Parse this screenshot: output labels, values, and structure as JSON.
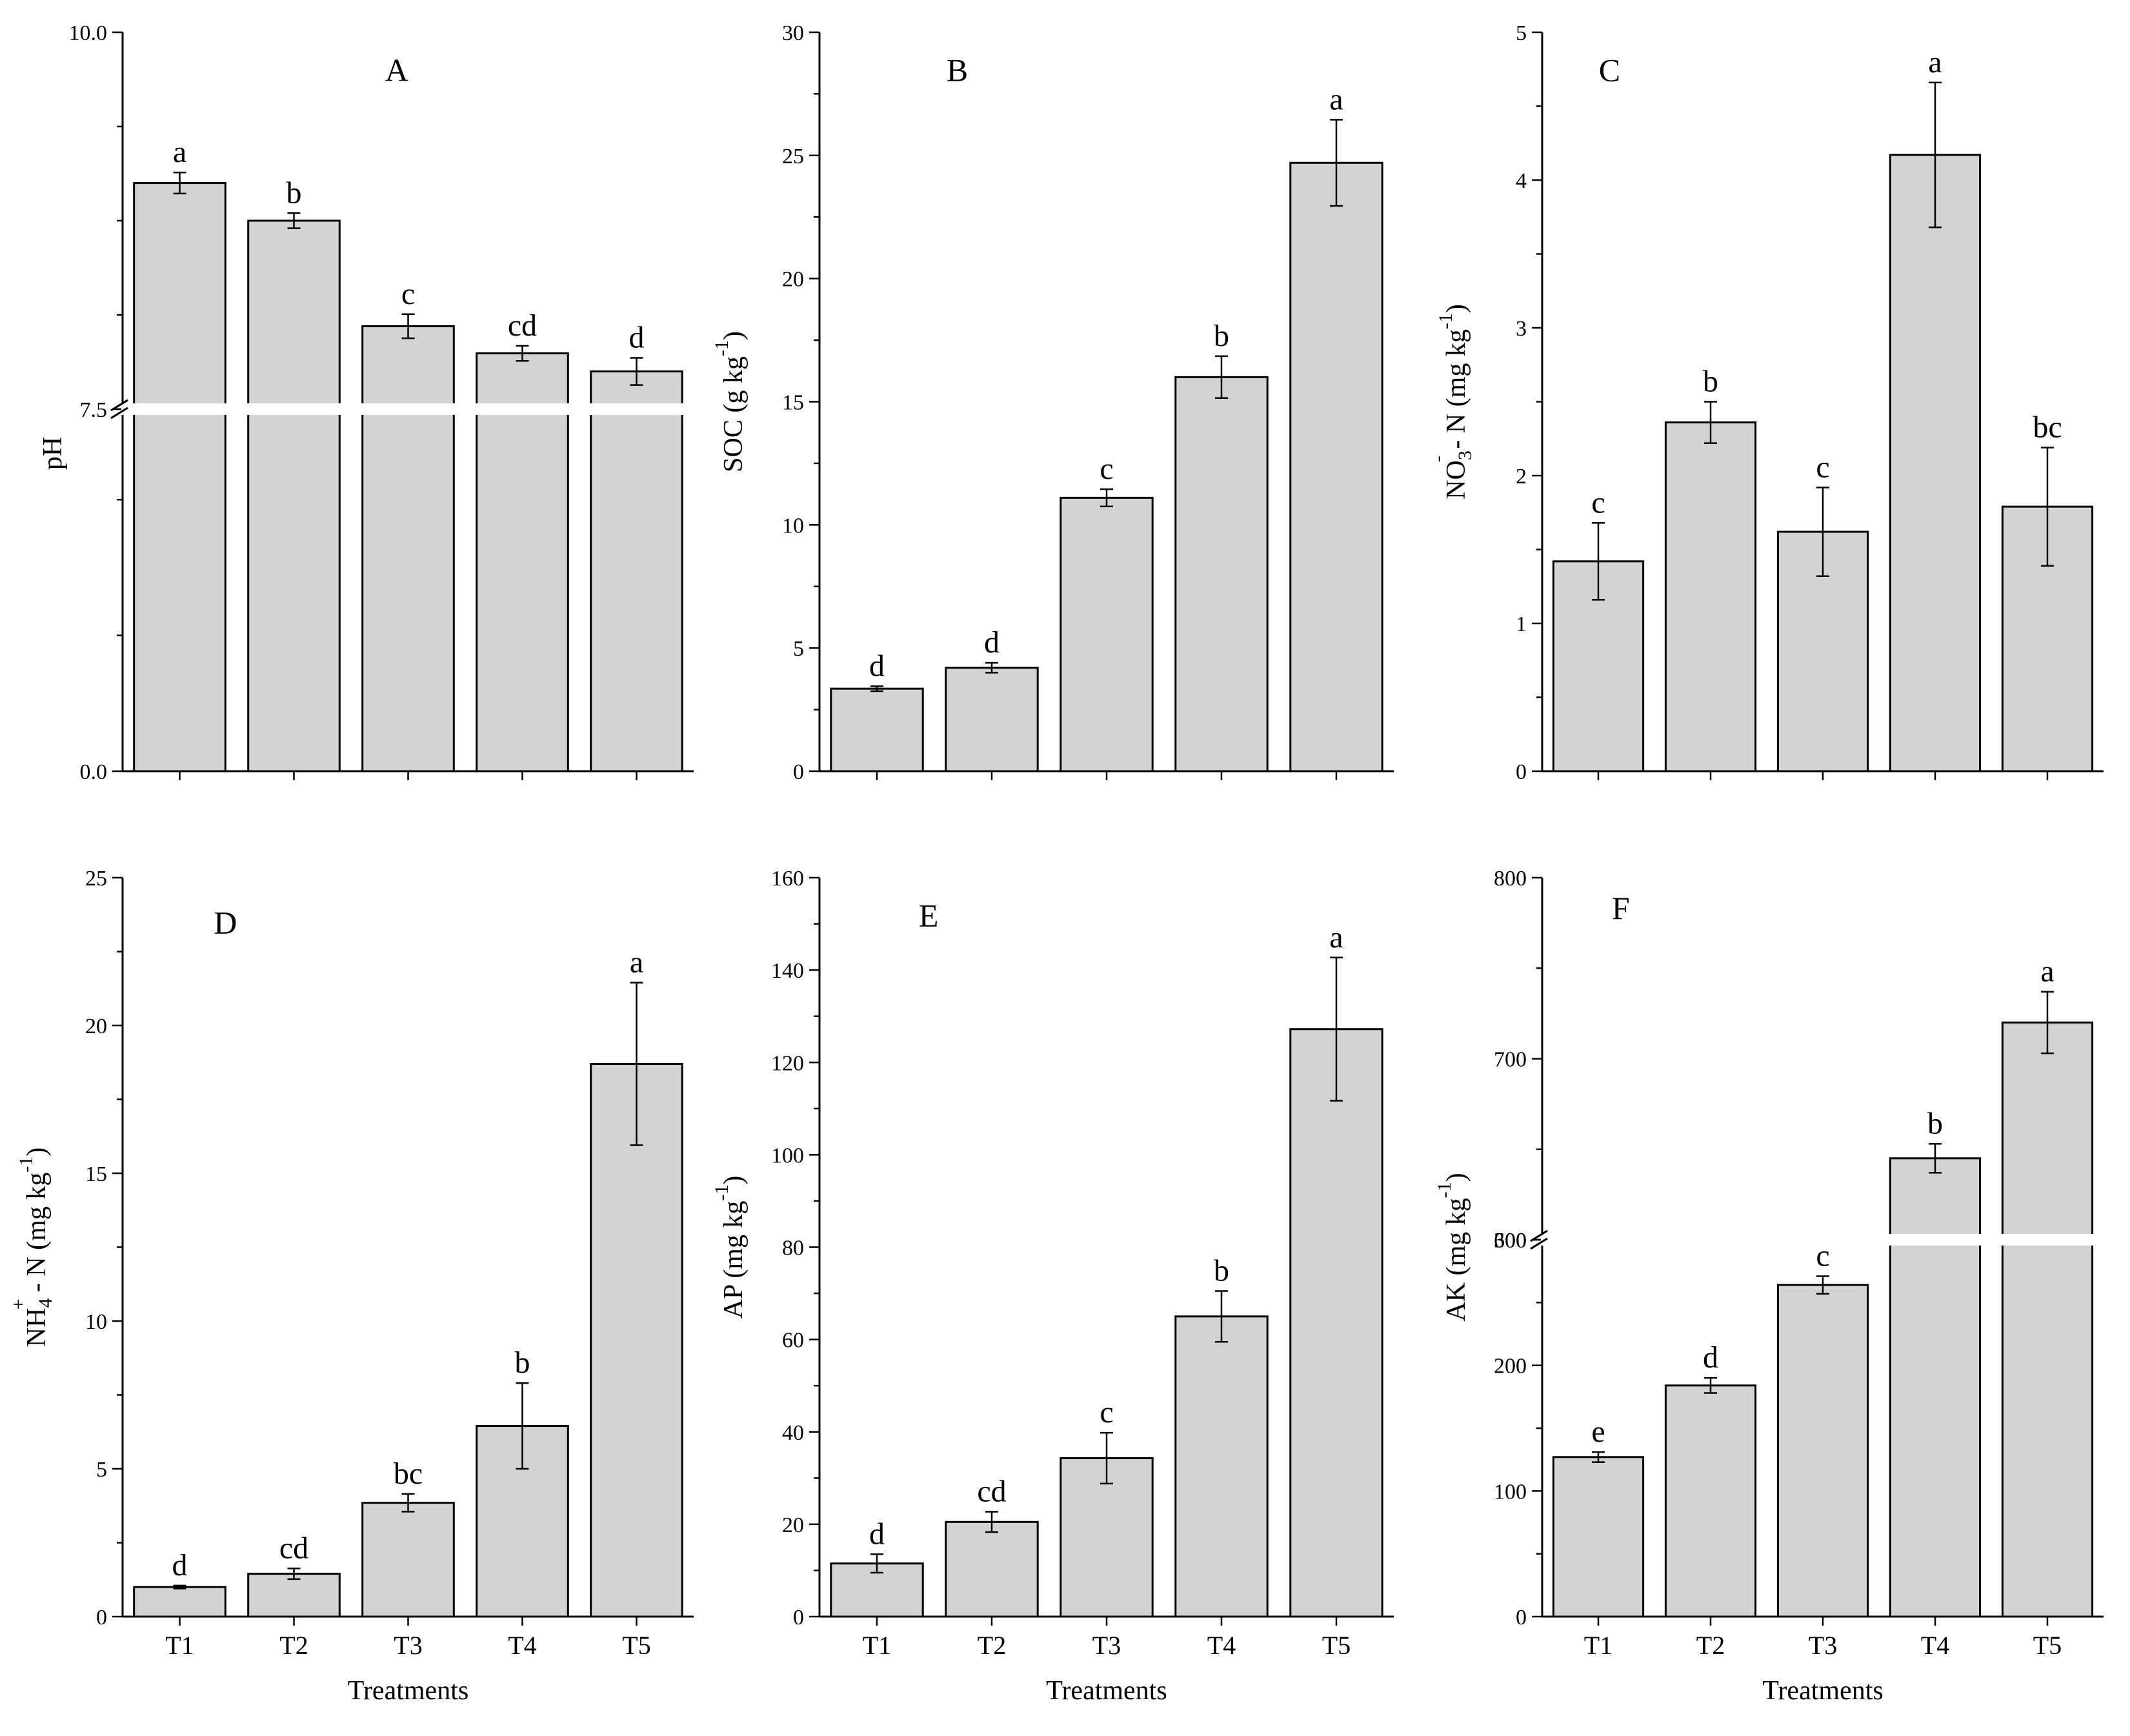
{
  "figure": {
    "categories": [
      "T1",
      "T2",
      "T3",
      "T4",
      "T5"
    ],
    "x_title": "Treatments"
  },
  "chart_data": [
    {
      "id": "A",
      "type": "bar",
      "panel_label": "A",
      "ylabel": "pH",
      "ylabel_sub": "",
      "ylabel_sup": "",
      "ylabel_tail": "",
      "categories": [
        "T1",
        "T2",
        "T3",
        "T4",
        "T5"
      ],
      "values": [
        9.0,
        8.75,
        8.05,
        7.87,
        7.75
      ],
      "errors": [
        0.07,
        0.05,
        0.08,
        0.05,
        0.09
      ],
      "significance": [
        "a",
        "b",
        "c",
        "cd",
        "d"
      ],
      "ylim": [
        0,
        10
      ],
      "yticks": [
        0,
        7.5,
        10
      ],
      "ytick_labels": [
        "0.0",
        "7.5",
        "10.0"
      ],
      "axis_break": [
        5,
        7.5
      ],
      "show_x_labels": false,
      "show_x_title": false
    },
    {
      "id": "B",
      "type": "bar",
      "panel_label": "B",
      "ylabel": "SOC (g kg",
      "ylabel_sub": "",
      "ylabel_sup": "-1",
      "ylabel_tail": ")",
      "categories": [
        "T1",
        "T2",
        "T3",
        "T4",
        "T5"
      ],
      "values": [
        3.35,
        4.2,
        11.1,
        16.0,
        24.7
      ],
      "errors": [
        0.1,
        0.2,
        0.35,
        0.85,
        1.75
      ],
      "significance": [
        "d",
        "d",
        "c",
        "b",
        "a"
      ],
      "ylim": [
        0,
        30
      ],
      "yticks": [
        0,
        5,
        10,
        15,
        20,
        25,
        30
      ],
      "ytick_labels": [
        "0",
        "5",
        "10",
        "15",
        "20",
        "25",
        "30"
      ],
      "axis_break": null,
      "show_x_labels": false,
      "show_x_title": false
    },
    {
      "id": "C",
      "type": "bar",
      "panel_label": "C",
      "ylabel": "NO",
      "ylabel_sub": "3",
      "ylabel_sup": "-",
      "ylabel_tail": " - N (mg kg",
      "ylabel_sup2": "-1",
      "ylabel_tail2": ")",
      "categories": [
        "T1",
        "T2",
        "T3",
        "T4",
        "T5"
      ],
      "values": [
        1.42,
        2.36,
        1.62,
        4.17,
        1.79
      ],
      "errors": [
        0.26,
        0.14,
        0.3,
        0.49,
        0.4
      ],
      "significance": [
        "c",
        "b",
        "c",
        "a",
        "bc"
      ],
      "ylim": [
        0,
        5
      ],
      "yticks": [
        0,
        1,
        2,
        3,
        4,
        5
      ],
      "ytick_labels": [
        "0",
        "1",
        "2",
        "3",
        "4",
        "5"
      ],
      "axis_break": null,
      "show_x_labels": false,
      "show_x_title": false
    },
    {
      "id": "D",
      "type": "bar",
      "panel_label": "D",
      "ylabel": "NH",
      "ylabel_sub": "4",
      "ylabel_sup": "+",
      "ylabel_tail": " - N (mg kg",
      "ylabel_sup2": "-1",
      "ylabel_tail2": ")",
      "categories": [
        "T1",
        "T2",
        "T3",
        "T4",
        "T5"
      ],
      "values": [
        1.0,
        1.45,
        3.85,
        6.45,
        18.7
      ],
      "errors": [
        0.05,
        0.18,
        0.3,
        1.45,
        2.75
      ],
      "significance": [
        "d",
        "cd",
        "bc",
        "b",
        "a"
      ],
      "ylim": [
        0,
        25
      ],
      "yticks": [
        0,
        5,
        10,
        15,
        20,
        25
      ],
      "ytick_labels": [
        "0",
        "5",
        "10",
        "15",
        "20",
        "25"
      ],
      "axis_break": null,
      "show_x_labels": true,
      "show_x_title": true
    },
    {
      "id": "E",
      "type": "bar",
      "panel_label": "E",
      "ylabel": "AP (mg kg",
      "ylabel_sub": "",
      "ylabel_sup": "-1",
      "ylabel_tail": ")",
      "categories": [
        "T1",
        "T2",
        "T3",
        "T4",
        "T5"
      ],
      "values": [
        11.5,
        20.5,
        34.3,
        65.0,
        127.2
      ],
      "errors": [
        2.0,
        2.2,
        5.5,
        5.5,
        15.5
      ],
      "significance": [
        "d",
        "cd",
        "c",
        "b",
        "a"
      ],
      "ylim": [
        0,
        160
      ],
      "yticks": [
        0,
        20,
        40,
        60,
        80,
        100,
        120,
        140,
        160
      ],
      "ytick_labels": [
        "0",
        "20",
        "40",
        "60",
        "80",
        "100",
        "120",
        "140",
        "160"
      ],
      "axis_break": null,
      "show_x_labels": true,
      "show_x_title": true
    },
    {
      "id": "F",
      "type": "bar",
      "panel_label": "F",
      "ylabel": "AK (mg kg",
      "ylabel_sub": "",
      "ylabel_sup": "-1",
      "ylabel_tail": ")",
      "categories": [
        "T1",
        "T2",
        "T3",
        "T4",
        "T5"
      ],
      "values": [
        127,
        184,
        264,
        645,
        720
      ],
      "errors": [
        4,
        6,
        7,
        8,
        17
      ],
      "significance": [
        "e",
        "d",
        "c",
        "b",
        "a"
      ],
      "ylim": [
        0,
        800
      ],
      "yticks": [
        0,
        100,
        200,
        300,
        600,
        700,
        800
      ],
      "ytick_labels": [
        "0",
        "100",
        "200",
        "300",
        "600",
        "700",
        "800"
      ],
      "axis_break": [
        300,
        600
      ],
      "show_x_labels": true,
      "show_x_title": true
    }
  ]
}
